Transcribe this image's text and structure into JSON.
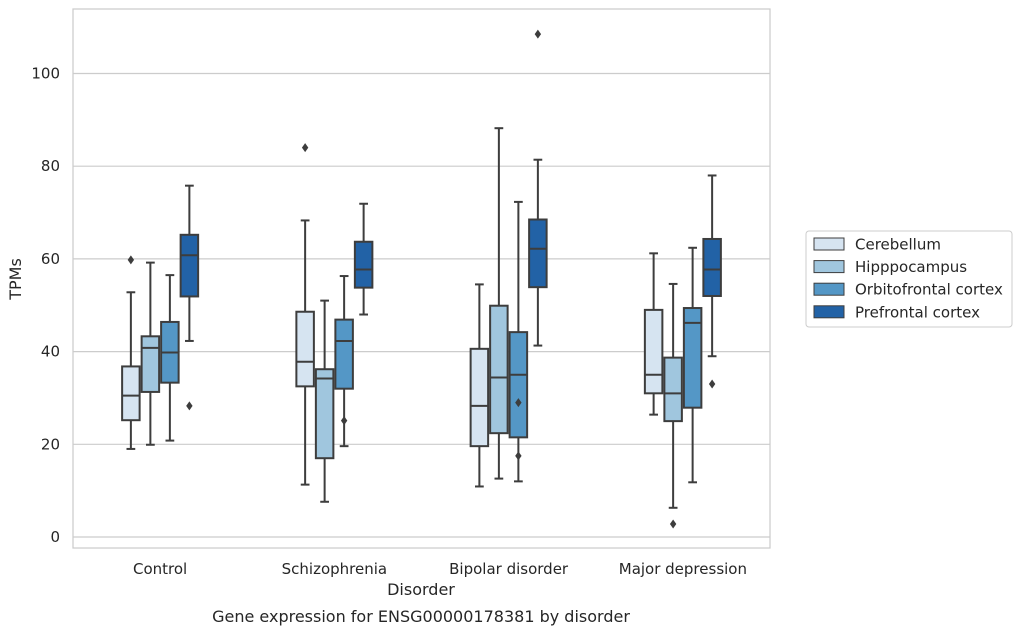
{
  "chart_data": {
    "type": "box",
    "xlabel": "Disorder",
    "ylabel": "TPMs",
    "caption": "Gene expression for ENSG00000178381 by disorder",
    "ylim": [
      -2,
      114
    ],
    "yticks": [
      0,
      20,
      40,
      60,
      80,
      100
    ],
    "grid": "horizontal",
    "legend_position": "right",
    "categories": [
      "Control",
      "Schizophrenia",
      "Bipolar disorder",
      "Major depression"
    ],
    "series": [
      {
        "name": "Cerebellum",
        "color": "#d6e4f1",
        "boxes": [
          {
            "whisker_low": 19,
            "q1": 25.2,
            "median": 30.5,
            "q3": 36.8,
            "whisker_high": 52.8,
            "outliers": [
              59.8
            ]
          },
          {
            "whisker_low": 11.3,
            "q1": 32.5,
            "median": 37.8,
            "q3": 48.6,
            "whisker_high": 68.3,
            "outliers": [
              84
            ]
          },
          {
            "whisker_low": 10.9,
            "q1": 19.6,
            "median": 28.3,
            "q3": 40.6,
            "whisker_high": 54.5,
            "outliers": []
          },
          {
            "whisker_low": 26.4,
            "q1": 31.0,
            "median": 35.0,
            "q3": 49.0,
            "whisker_high": 61.2,
            "outliers": []
          }
        ]
      },
      {
        "name": "Hipppocampus",
        "color": "#a0c6de",
        "boxes": [
          {
            "whisker_low": 19.9,
            "q1": 31.3,
            "median": 40.8,
            "q3": 43.3,
            "whisker_high": 59.2,
            "outliers": []
          },
          {
            "whisker_low": 7.6,
            "q1": 17.0,
            "median": 34.2,
            "q3": 36.2,
            "whisker_high": 51.0,
            "outliers": []
          },
          {
            "whisker_low": 12.6,
            "q1": 22.4,
            "median": 34.4,
            "q3": 49.9,
            "whisker_high": 88.2,
            "outliers": []
          },
          {
            "whisker_low": 6.3,
            "q1": 25.0,
            "median": 31.0,
            "q3": 38.7,
            "whisker_high": 54.6,
            "outliers": [
              2.8
            ]
          }
        ]
      },
      {
        "name": "Orbitofrontal cortex",
        "color": "#5497c6",
        "boxes": [
          {
            "whisker_low": 20.8,
            "q1": 33.3,
            "median": 39.8,
            "q3": 46.4,
            "whisker_high": 56.5,
            "outliers": []
          },
          {
            "whisker_low": 19.6,
            "q1": 32.0,
            "median": 42.3,
            "q3": 46.9,
            "whisker_high": 56.3,
            "outliers": [
              25.1
            ]
          },
          {
            "whisker_low": 12.0,
            "q1": 21.5,
            "median": 35.0,
            "q3": 44.2,
            "whisker_high": 72.3,
            "outliers": [
              29.0,
              17.5
            ]
          },
          {
            "whisker_low": 11.8,
            "q1": 27.9,
            "median": 46.2,
            "q3": 49.4,
            "whisker_high": 62.4,
            "outliers": []
          }
        ]
      },
      {
        "name": "Prefrontal cortex",
        "color": "#2262a6",
        "boxes": [
          {
            "whisker_low": 42.3,
            "q1": 51.9,
            "median": 60.8,
            "q3": 65.2,
            "whisker_high": 75.8,
            "outliers": [
              28.3
            ]
          },
          {
            "whisker_low": 48.0,
            "q1": 53.8,
            "median": 57.7,
            "q3": 63.7,
            "whisker_high": 71.9,
            "outliers": []
          },
          {
            "whisker_low": 41.3,
            "q1": 53.9,
            "median": 62.2,
            "q3": 68.5,
            "whisker_high": 81.4,
            "outliers": [
              108.5
            ]
          },
          {
            "whisker_low": 39.0,
            "q1": 52.0,
            "median": 57.7,
            "q3": 64.3,
            "whisker_high": 78.0,
            "outliers": [
              33.0
            ]
          }
        ]
      }
    ]
  }
}
